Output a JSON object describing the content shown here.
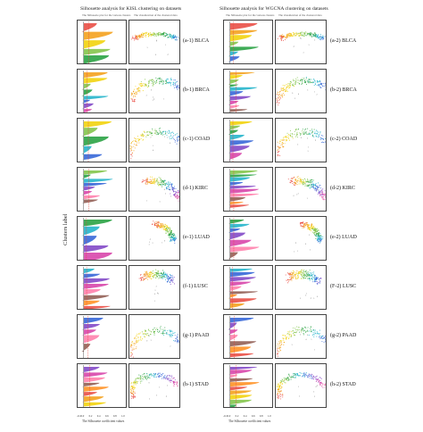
{
  "figure": {
    "left_title": "Silhouette analysis for KISL clustering on datasets",
    "right_title": "Silhouette analysis for WGCNA clustering on datasets",
    "left_subtitle_silhouette": "The Silhouette plot for the various clusters",
    "left_subtitle_scatter": "The visualization of the clustered data",
    "right_subtitle_silhouette": "The Silhouette plot for the various clusters",
    "right_subtitle_scatter": "The visualization of the clustered data",
    "y_axis_label": "Clusters label",
    "x_axis_label": "The Silhouette coefficient values",
    "x_ticks": [
      "-0.1",
      "0.0",
      "0.2",
      "0.4",
      "0.6",
      "0.8",
      "1.0"
    ]
  },
  "rows": [
    {
      "left_label": "(a-1) BLCA",
      "right_label": "(a-2) BLCA"
    },
    {
      "left_label": "(b-1) BRCA",
      "right_label": "(b-2) BRCA"
    },
    {
      "left_label": "(c-1) COAD",
      "right_label": "(c-2) COAD"
    },
    {
      "left_label": "(d-1) KIRC",
      "right_label": "(d-2) KIRC"
    },
    {
      "left_label": "(e-1) LUAD",
      "right_label": "(e-2) LUAD"
    },
    {
      "left_label": "(f-1) LUSC",
      "right_label": "(F-2) LUSC"
    },
    {
      "left_label": "(g-1) PAAD",
      "right_label": "(g-2) PAAD"
    },
    {
      "left_label": "(h-1) STAD",
      "right_label": "(h-2) STAD"
    }
  ],
  "chart_data": {
    "type": "scatter",
    "panel_grid": {
      "rows": 8,
      "columns": 2,
      "per_row": [
        "silhouette-bars",
        "cluster-scatter"
      ]
    },
    "xlim": [
      -0.1,
      1.0
    ],
    "xlabel": "The Silhouette coefficient values",
    "ylabel": "Clusters label",
    "palette": [
      "#e8453c",
      "#f39c12",
      "#f1d000",
      "#7cc242",
      "#1f9e3a",
      "#19b0c8",
      "#2c5fd6",
      "#7b3fc4",
      "#d63ca6",
      "#ff7aa8",
      "#8c564b",
      "#ff8c1a"
    ]
  }
}
